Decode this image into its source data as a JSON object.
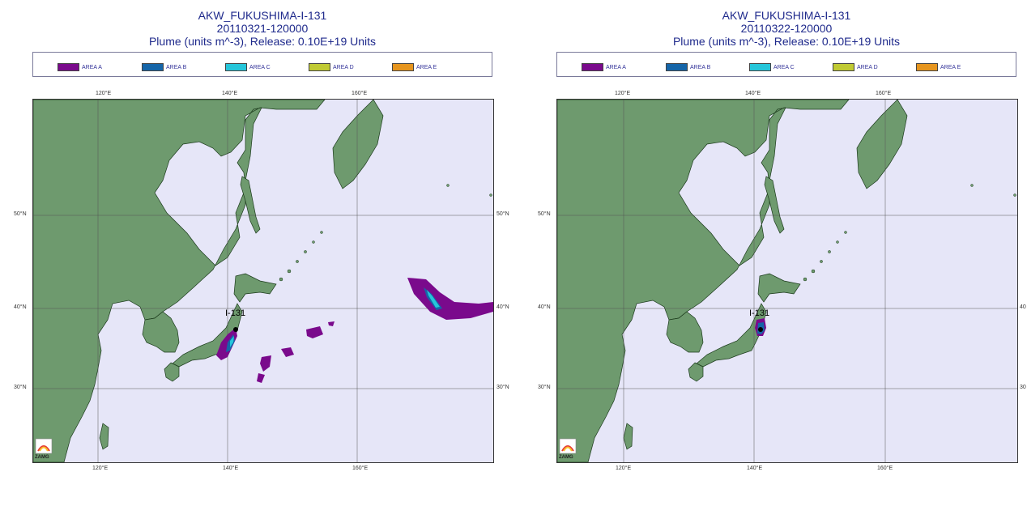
{
  "panels": [
    {
      "title_line1": "AKW_FUKUSHIMA-I-131",
      "title_line2": "20110321-120000",
      "title_line3": "Plume (units m^-3), Release:  0.10E+19 Units",
      "source_label": "I-131",
      "lon_ticks_top": [
        "120°E",
        "140°E",
        "160°E"
      ],
      "lon_ticks_bottom": [
        "120°E",
        "140°E",
        "160°E"
      ],
      "lat_ticks_left": [
        "50°N",
        "40°N",
        "30°N"
      ],
      "lat_ticks_right": [
        "50°N",
        "40°N",
        "30°N"
      ]
    },
    {
      "title_line1": "AKW_FUKUSHIMA-I-131",
      "title_line2": "20110322-120000",
      "title_line3": "Plume (units m^-3), Release:  0.10E+19 Units",
      "source_label": "I-131",
      "lon_ticks_top": [
        "120°E",
        "140°E",
        "160°E"
      ],
      "lon_ticks_bottom": [
        "120°E",
        "140°E",
        "160°E"
      ],
      "lat_ticks_left": [
        "50°N",
        "40°N",
        "30°N"
      ],
      "lat_ticks_right": [
        "40",
        "30"
      ]
    }
  ],
  "legend": [
    {
      "label": "AREA A",
      "color": "#7a0a8c"
    },
    {
      "label": "AREA B",
      "color": "#1565a8"
    },
    {
      "label": "AREA C",
      "color": "#26c6da"
    },
    {
      "label": "AREA D",
      "color": "#c0ca33"
    },
    {
      "label": "AREA E",
      "color": "#e6951e"
    }
  ],
  "logo_text": "ZAMG",
  "colors": {
    "land": "#6e9a6e",
    "sea": "#e6e6f8",
    "gridline": "#555555",
    "source_marker": "#000000"
  }
}
